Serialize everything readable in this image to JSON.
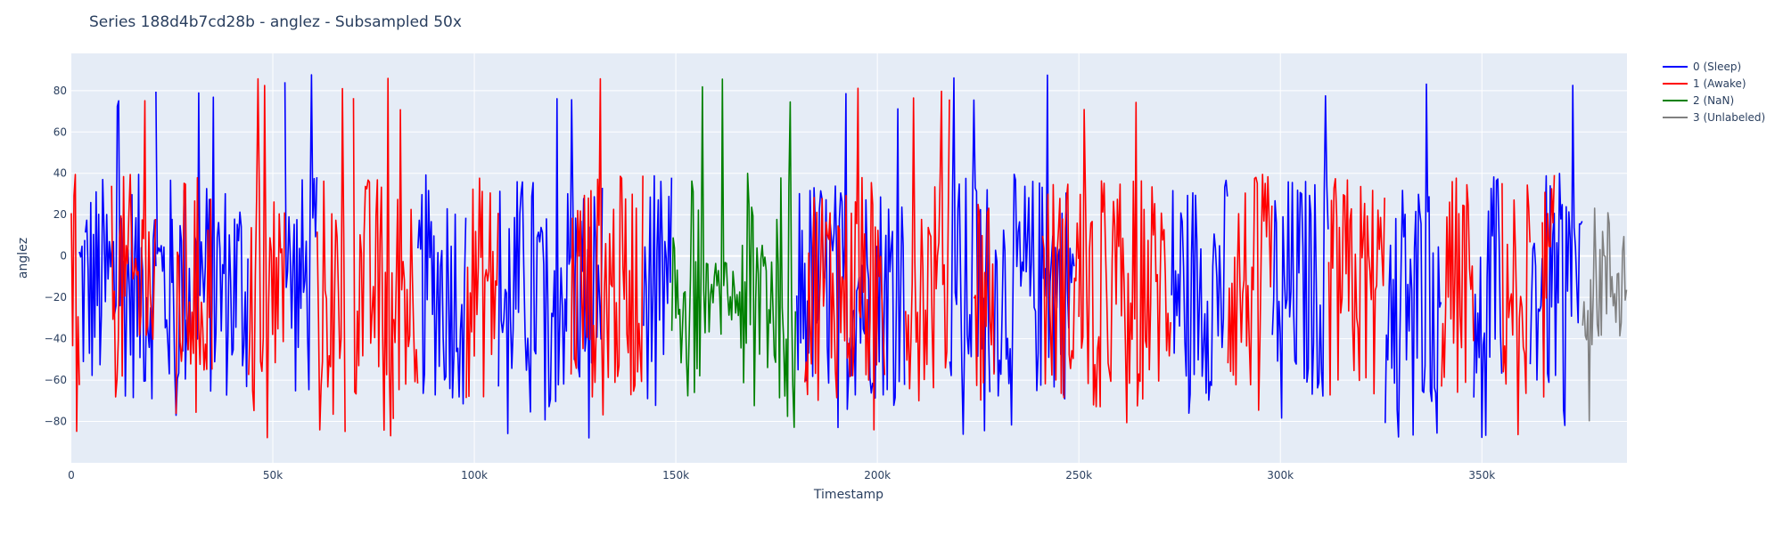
{
  "chart_data": {
    "type": "line",
    "title": "Series 188d4b7cd28b - anglez - Subsampled 50x",
    "xlabel": "Timestamp",
    "ylabel": "anglez",
    "xlim": [
      0,
      386000
    ],
    "ylim": [
      -100,
      98
    ],
    "grid": true,
    "legend_placement": "right",
    "x_ticks": [
      {
        "value": 0,
        "label": "0"
      },
      {
        "value": 50000,
        "label": "50k"
      },
      {
        "value": 100000,
        "label": "100k"
      },
      {
        "value": 150000,
        "label": "150k"
      },
      {
        "value": 200000,
        "label": "200k"
      },
      {
        "value": 250000,
        "label": "250k"
      },
      {
        "value": 300000,
        "label": "300k"
      },
      {
        "value": 350000,
        "label": "350k"
      }
    ],
    "y_ticks": [
      {
        "value": 80,
        "label": "80"
      },
      {
        "value": 60,
        "label": "60"
      },
      {
        "value": 40,
        "label": "40"
      },
      {
        "value": 20,
        "label": "20"
      },
      {
        "value": 0,
        "label": "0"
      },
      {
        "value": -20,
        "label": "−20"
      },
      {
        "value": -40,
        "label": "−40"
      },
      {
        "value": -60,
        "label": "−60"
      },
      {
        "value": -80,
        "label": "−80"
      }
    ],
    "series": [
      {
        "name": "0 (Sleep)",
        "color": "#0000ff",
        "segments": [
          [
            2000,
            3500
          ],
          [
            3500,
            21000
          ],
          [
            21000,
            25000
          ],
          [
            25000,
            44000
          ],
          [
            53000,
            61000
          ],
          [
            86000,
            98000
          ],
          [
            106000,
            132000
          ],
          [
            142000,
            149000
          ],
          [
            180000,
            207000
          ],
          [
            218000,
            228000
          ],
          [
            229000,
            249000
          ],
          [
            273000,
            287000
          ],
          [
            298000,
            312000
          ],
          [
            326000,
            340000
          ],
          [
            348000,
            355000
          ],
          [
            362000,
            375000
          ]
        ]
      },
      {
        "name": "1 (Awake)",
        "color": "#ff0000",
        "segments": [
          [
            0,
            2000
          ],
          [
            10000,
            21000
          ],
          [
            26000,
            35000
          ],
          [
            44000,
            53000
          ],
          [
            61000,
            68000
          ],
          [
            70000,
            80000
          ],
          [
            80000,
            86000
          ],
          [
            98000,
            106000
          ],
          [
            124000,
            142000
          ],
          [
            182000,
            202000
          ],
          [
            207000,
            218000
          ],
          [
            224000,
            229000
          ],
          [
            241000,
            250000
          ],
          [
            250000,
            273000
          ],
          [
            287000,
            298000
          ],
          [
            312000,
            326000
          ],
          [
            340000,
            348000
          ],
          [
            355000,
            362000
          ],
          [
            365000,
            368000
          ]
        ]
      },
      {
        "name": "2 (NaN)",
        "color": "#008000",
        "segments": [
          [
            149000,
            180000
          ]
        ]
      },
      {
        "name": "3 (Unlabeled)",
        "color": "#808080",
        "segments": [
          [
            375000,
            386000
          ]
        ]
      }
    ]
  }
}
